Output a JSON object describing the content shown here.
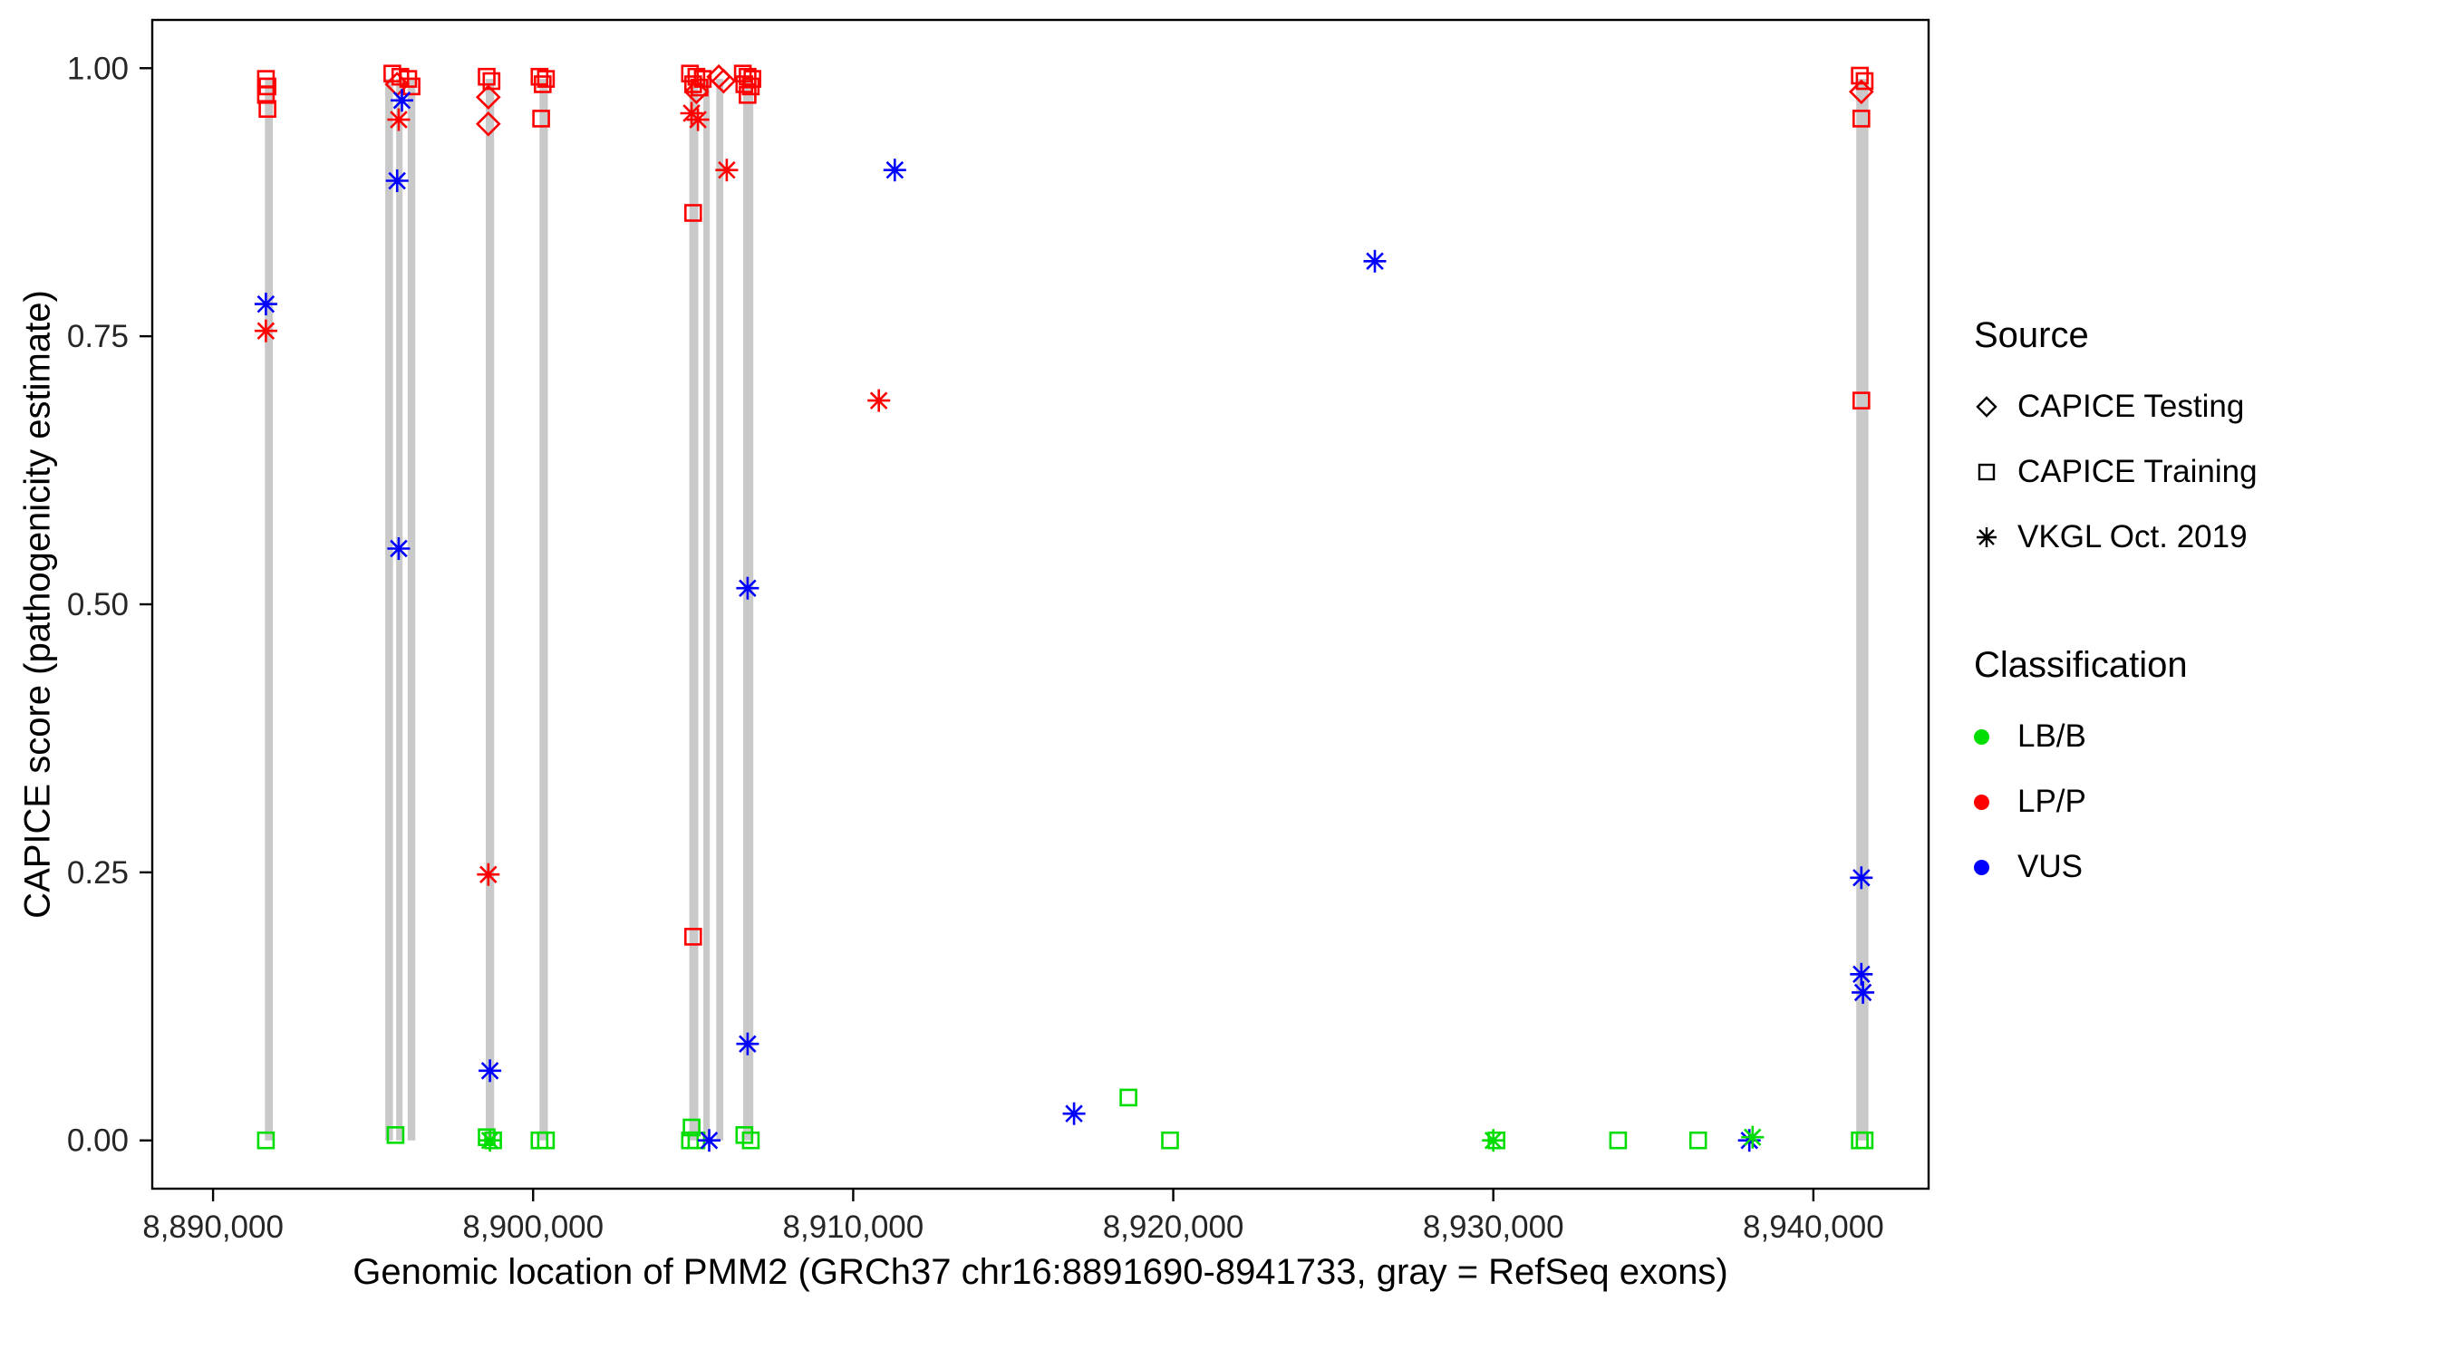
{
  "legend": {
    "source": {
      "title": "Source",
      "items": [
        {
          "symbol": "diamond-outline",
          "label": "CAPICE Testing"
        },
        {
          "symbol": "square-outline",
          "label": "CAPICE Training"
        },
        {
          "symbol": "asterisk",
          "label": "VKGL Oct. 2019"
        }
      ]
    },
    "classification": {
      "title": "Classification",
      "items": [
        {
          "symbol": "circle",
          "color": "#00DD00",
          "label": "LB/B"
        },
        {
          "symbol": "circle",
          "color": "#FF0000",
          "label": "LP/P"
        },
        {
          "symbol": "circle",
          "color": "#0000FF",
          "label": "VUS"
        }
      ]
    }
  },
  "chart_data": {
    "type": "scatter",
    "title": "",
    "xlabel": "Genomic location of PMM2 (GRCh37 chr16:8891690-8941733, gray = RefSeq exons)",
    "ylabel": "CAPICE score (pathogenicity estimate)",
    "xlim": [
      8888100,
      8943600
    ],
    "ylim": [
      -0.045,
      1.045
    ],
    "x_ticks": [
      8890000,
      8900000,
      8910000,
      8920000,
      8930000,
      8940000
    ],
    "x_tick_labels": [
      "8,890,000",
      "8,900,000",
      "8,910,000",
      "8,920,000",
      "8,930,000",
      "8,940,000"
    ],
    "y_ticks": [
      0,
      0.25,
      0.5,
      0.75,
      1.0
    ],
    "y_tick_labels": [
      "0.00",
      "0.25",
      "0.50",
      "0.75",
      "1.00"
    ],
    "grid": false,
    "legend_position": "right",
    "colors": {
      "LB/B": "#00DD00",
      "LP/P": "#FF0000",
      "VUS": "#0000FF",
      "exon": "#C9C9C9",
      "axis": "#000000",
      "tick_text": "#262626"
    },
    "exons": [
      [
        8891620,
        8891870
      ],
      [
        8895380,
        8895620
      ],
      [
        8895720,
        8895920
      ],
      [
        8896080,
        8896320
      ],
      [
        8898520,
        8898780
      ],
      [
        8900200,
        8900460
      ],
      [
        8904880,
        8905160
      ],
      [
        8905320,
        8905520
      ],
      [
        8905720,
        8905940
      ],
      [
        8906560,
        8906880
      ],
      [
        8941340,
        8941720
      ]
    ],
    "exon_y_extent": [
      0.0,
      0.99
    ],
    "points": [
      {
        "x": 8891650,
        "y": 0.99,
        "source": "training",
        "cls": "LP/P"
      },
      {
        "x": 8891700,
        "y": 0.983,
        "source": "training",
        "cls": "LP/P"
      },
      {
        "x": 8891650,
        "y": 0.975,
        "source": "training",
        "cls": "LP/P"
      },
      {
        "x": 8891700,
        "y": 0.962,
        "source": "training",
        "cls": "LP/P"
      },
      {
        "x": 8891650,
        "y": 0.78,
        "source": "vkgl",
        "cls": "VUS"
      },
      {
        "x": 8891650,
        "y": 0.755,
        "source": "vkgl",
        "cls": "LP/P"
      },
      {
        "x": 8891650,
        "y": 0.0,
        "source": "training",
        "cls": "LB/B"
      },
      {
        "x": 8895600,
        "y": 0.995,
        "source": "training",
        "cls": "LP/P"
      },
      {
        "x": 8895850,
        "y": 0.992,
        "source": "training",
        "cls": "LP/P"
      },
      {
        "x": 8896100,
        "y": 0.99,
        "source": "training",
        "cls": "LP/P"
      },
      {
        "x": 8895750,
        "y": 0.985,
        "source": "testing",
        "cls": "LP/P"
      },
      {
        "x": 8896200,
        "y": 0.983,
        "source": "training",
        "cls": "LP/P"
      },
      {
        "x": 8895900,
        "y": 0.97,
        "source": "vkgl",
        "cls": "VUS"
      },
      {
        "x": 8895800,
        "y": 0.952,
        "source": "vkgl",
        "cls": "LP/P"
      },
      {
        "x": 8895750,
        "y": 0.895,
        "source": "vkgl",
        "cls": "VUS"
      },
      {
        "x": 8895800,
        "y": 0.552,
        "source": "vkgl",
        "cls": "VUS"
      },
      {
        "x": 8895700,
        "y": 0.005,
        "source": "training",
        "cls": "LB/B"
      },
      {
        "x": 8898550,
        "y": 0.992,
        "source": "training",
        "cls": "LP/P"
      },
      {
        "x": 8898700,
        "y": 0.988,
        "source": "training",
        "cls": "LP/P"
      },
      {
        "x": 8898600,
        "y": 0.973,
        "source": "testing",
        "cls": "LP/P"
      },
      {
        "x": 8898600,
        "y": 0.948,
        "source": "testing",
        "cls": "LP/P"
      },
      {
        "x": 8898600,
        "y": 0.248,
        "source": "vkgl",
        "cls": "LP/P"
      },
      {
        "x": 8898650,
        "y": 0.065,
        "source": "vkgl",
        "cls": "VUS"
      },
      {
        "x": 8898550,
        "y": 0.003,
        "source": "training",
        "cls": "LB/B"
      },
      {
        "x": 8898650,
        "y": 0.0,
        "source": "vkgl",
        "cls": "LB/B"
      },
      {
        "x": 8898750,
        "y": 0.0,
        "source": "training",
        "cls": "LB/B"
      },
      {
        "x": 8900200,
        "y": 0.992,
        "source": "training",
        "cls": "LP/P"
      },
      {
        "x": 8900400,
        "y": 0.99,
        "source": "training",
        "cls": "LP/P"
      },
      {
        "x": 8900300,
        "y": 0.985,
        "source": "training",
        "cls": "LP/P"
      },
      {
        "x": 8900250,
        "y": 0.953,
        "source": "training",
        "cls": "LP/P"
      },
      {
        "x": 8900200,
        "y": 0.0,
        "source": "training",
        "cls": "LB/B"
      },
      {
        "x": 8900400,
        "y": 0.0,
        "source": "training",
        "cls": "LB/B"
      },
      {
        "x": 8904900,
        "y": 0.995,
        "source": "training",
        "cls": "LP/P"
      },
      {
        "x": 8905100,
        "y": 0.992,
        "source": "training",
        "cls": "LP/P"
      },
      {
        "x": 8905300,
        "y": 0.99,
        "source": "training",
        "cls": "LP/P"
      },
      {
        "x": 8905000,
        "y": 0.985,
        "source": "training",
        "cls": "LP/P"
      },
      {
        "x": 8905200,
        "y": 0.982,
        "source": "training",
        "cls": "LP/P"
      },
      {
        "x": 8905100,
        "y": 0.978,
        "source": "testing",
        "cls": "LP/P"
      },
      {
        "x": 8904950,
        "y": 0.958,
        "source": "vkgl",
        "cls": "LP/P"
      },
      {
        "x": 8905150,
        "y": 0.952,
        "source": "vkgl",
        "cls": "LP/P"
      },
      {
        "x": 8905000,
        "y": 0.865,
        "source": "training",
        "cls": "LP/P"
      },
      {
        "x": 8905000,
        "y": 0.19,
        "source": "training",
        "cls": "LP/P"
      },
      {
        "x": 8904950,
        "y": 0.012,
        "source": "training",
        "cls": "LB/B"
      },
      {
        "x": 8904900,
        "y": 0.0,
        "source": "training",
        "cls": "LB/B"
      },
      {
        "x": 8905100,
        "y": 0.0,
        "source": "training",
        "cls": "LB/B"
      },
      {
        "x": 8905500,
        "y": 0.0,
        "source": "vkgl",
        "cls": "VUS"
      },
      {
        "x": 8905800,
        "y": 0.992,
        "source": "testing",
        "cls": "LP/P"
      },
      {
        "x": 8905950,
        "y": 0.988,
        "source": "testing",
        "cls": "LP/P"
      },
      {
        "x": 8906050,
        "y": 0.905,
        "source": "vkgl",
        "cls": "LP/P"
      },
      {
        "x": 8906550,
        "y": 0.995,
        "source": "training",
        "cls": "LP/P"
      },
      {
        "x": 8906700,
        "y": 0.992,
        "source": "training",
        "cls": "LP/P"
      },
      {
        "x": 8906850,
        "y": 0.99,
        "source": "training",
        "cls": "LP/P"
      },
      {
        "x": 8906600,
        "y": 0.985,
        "source": "training",
        "cls": "LP/P"
      },
      {
        "x": 8906800,
        "y": 0.983,
        "source": "training",
        "cls": "LP/P"
      },
      {
        "x": 8906700,
        "y": 0.975,
        "source": "training",
        "cls": "LP/P"
      },
      {
        "x": 8906700,
        "y": 0.515,
        "source": "vkgl",
        "cls": "VUS"
      },
      {
        "x": 8906700,
        "y": 0.09,
        "source": "vkgl",
        "cls": "VUS"
      },
      {
        "x": 8906600,
        "y": 0.005,
        "source": "training",
        "cls": "LB/B"
      },
      {
        "x": 8906800,
        "y": 0.0,
        "source": "training",
        "cls": "LB/B"
      },
      {
        "x": 8910800,
        "y": 0.69,
        "source": "vkgl",
        "cls": "LP/P"
      },
      {
        "x": 8911300,
        "y": 0.905,
        "source": "vkgl",
        "cls": "VUS"
      },
      {
        "x": 8916900,
        "y": 0.025,
        "source": "vkgl",
        "cls": "VUS"
      },
      {
        "x": 8918600,
        "y": 0.04,
        "source": "training",
        "cls": "LB/B"
      },
      {
        "x": 8919900,
        "y": 0.0,
        "source": "training",
        "cls": "LB/B"
      },
      {
        "x": 8926300,
        "y": 0.82,
        "source": "vkgl",
        "cls": "VUS"
      },
      {
        "x": 8930000,
        "y": 0.0,
        "source": "vkgl",
        "cls": "LB/B"
      },
      {
        "x": 8930100,
        "y": 0.0,
        "source": "training",
        "cls": "LB/B"
      },
      {
        "x": 8933900,
        "y": 0.0,
        "source": "training",
        "cls": "LB/B"
      },
      {
        "x": 8936400,
        "y": 0.0,
        "source": "training",
        "cls": "LB/B"
      },
      {
        "x": 8938000,
        "y": 0.0,
        "source": "vkgl",
        "cls": "VUS"
      },
      {
        "x": 8938100,
        "y": 0.003,
        "source": "vkgl",
        "cls": "LB/B"
      },
      {
        "x": 8941450,
        "y": 0.993,
        "source": "training",
        "cls": "LP/P"
      },
      {
        "x": 8941600,
        "y": 0.988,
        "source": "training",
        "cls": "LP/P"
      },
      {
        "x": 8941500,
        "y": 0.978,
        "source": "testing",
        "cls": "LP/P"
      },
      {
        "x": 8941500,
        "y": 0.953,
        "source": "training",
        "cls": "LP/P"
      },
      {
        "x": 8941500,
        "y": 0.69,
        "source": "training",
        "cls": "LP/P"
      },
      {
        "x": 8941500,
        "y": 0.245,
        "source": "vkgl",
        "cls": "VUS"
      },
      {
        "x": 8941500,
        "y": 0.155,
        "source": "vkgl",
        "cls": "VUS"
      },
      {
        "x": 8941550,
        "y": 0.138,
        "source": "vkgl",
        "cls": "VUS"
      },
      {
        "x": 8941450,
        "y": 0.0,
        "source": "training",
        "cls": "LB/B"
      },
      {
        "x": 8941600,
        "y": 0.0,
        "source": "training",
        "cls": "LB/B"
      }
    ]
  }
}
